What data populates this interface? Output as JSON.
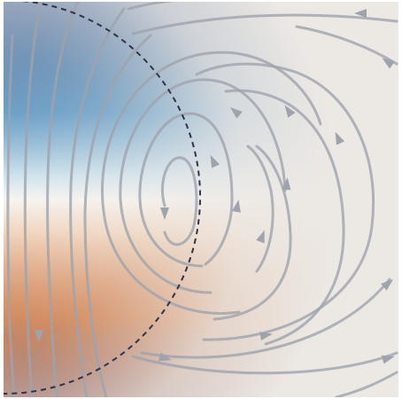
{
  "figure": {
    "background": "#ece8e4",
    "colormap": {
      "negative_strong": "#0a3a7a",
      "negative_mid": "#4f8fc0",
      "negative_light": "#cfe3ee",
      "neutral": "#ece8e4",
      "positive_light": "#f2d6c0",
      "positive_mid": "#c8662a",
      "positive_strong": "#5e1408"
    },
    "streamline_color": "#9fa3ad",
    "dashed_circle_color": "#2f3448",
    "arrowhead_icon": "triangle-arrow-icon"
  }
}
